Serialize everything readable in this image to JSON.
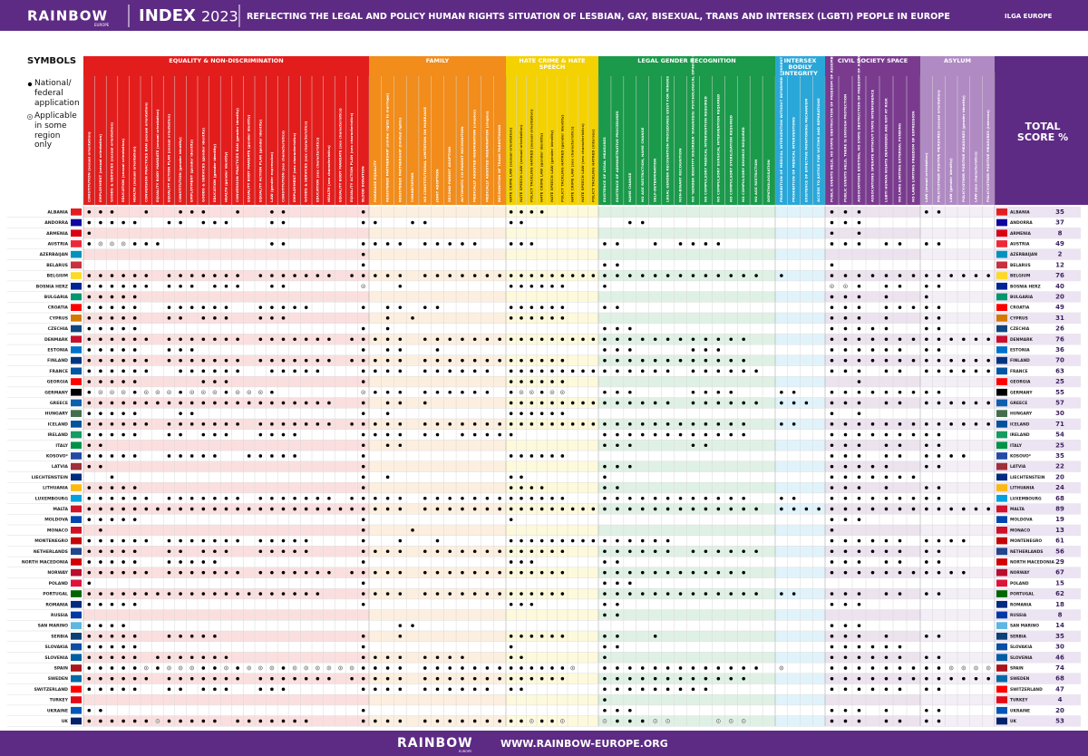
{
  "header": {
    "logo": "RAINBOW",
    "logo_sub": "EUROPE",
    "index": "INDEX",
    "year": "2023",
    "title": "REFLECTING THE LEGAL AND POLICY HUMAN RIGHTS SITUATION OF LESBIAN, GAY, BISEXUAL, TRANS AND INTERSEX (LGBTI) PEOPLE IN EUROPE",
    "org": "ILGA EUROPE"
  },
  "legend": {
    "title": "SYMBOLS",
    "national": "National/ federal application",
    "regional": "Applicable in some region only"
  },
  "footer": {
    "logo": "RAINBOW",
    "logo_sub": "EUROPE",
    "url": "WWW.RAINBOW-EUROPE.ORG"
  },
  "table": {
    "total_label": "TOTAL SCORE %",
    "sections": [
      {
        "title": "EQUALITY & NON-DISCRIMINATION",
        "color": "#e31d1c",
        "columns": [
          "CONSTITUTION (sexual orientation)",
          "EMPLOYMENT (sexual orientation)",
          "GOODS & SERVICES (sexual orientation)",
          "EDUCATION (sexual orientation)",
          "HEALTH (sexual orientation)",
          "CONVERSION PRACTICES BAN (sexual orientation)",
          "EQUALITY BODY MANDATE (sexual orientation)",
          "EQUALITY ACTION PLAN (sexual orientation)",
          "CONSTITUTION (gender identity)",
          "EMPLOYMENT (gender identity)",
          "GOODS & SERVICES (gender identity)",
          "EDUCATION (gender identity)",
          "HEALTH (gender identity)",
          "CONVERSION PRACTICES BAN (gender identity)",
          "EQUALITY BODY MANDATE (gender identity)",
          "EQUALITY ACTION PLAN (gender identity)",
          "LAW (gender expression)",
          "CONSTITUTION (sex characteristics)",
          "EMPLOYMENT (sex characteristics)",
          "GOODS & SERVICES (sex characteristics)",
          "EDUCATION (sex characteristics)",
          "HEALTH (sex characteristics)",
          "EQUALITY BODY MANDATE (sex characteristics)",
          "EQUALITY ACTION PLAN (sex characteristics)",
          "BLOOD DONATION"
        ]
      },
      {
        "title": "FAMILY",
        "color": "#f28c1a",
        "columns": [
          "MARRIAGE EQUALITY",
          "REGISTERED PARTNERSHIP (similar rights to marriage)",
          "REGISTERED PARTNERSHIP (limited rights)",
          "COHABITATION",
          "NO CONSTITUTIONAL LIMITATION ON MARRIAGE",
          "JOINT ADOPTION",
          "SECOND-PARENT ADOPTION",
          "AUTOMATIC CO-PARENT RECOGNITION",
          "MEDICALLY ASSISTED INSEMINATION (couples)",
          "MEDICALLY ASSISTED INSEMINATION (singles)",
          "RECOGNITION OF TRANS PARENTHOOD"
        ]
      },
      {
        "title": "HATE CRIME & HATE SPEECH",
        "color": "#f4d100",
        "columns": [
          "HATE CRIME LAW (sexual orientation)",
          "HATE SPEECH LAW (sexual orientation)",
          "POLICY TACKLING HATRED (sexual orientation)",
          "HATE CRIME LAW (gender identity)",
          "HATE SPEECH LAW (gender identity)",
          "POLICY TACKLING HATRED (gender identity)",
          "HATE CRIME LAW (sex characteristics)",
          "HATE SPEECH LAW (sex characteristics)",
          "POLICY TACKLING HATRED (intersex)"
        ]
      },
      {
        "title": "LEGAL GENDER RECOGNITION",
        "color": "#1a9a4a",
        "columns": [
          "EXISTENCE OF LEGAL MEASURES",
          "EXISTENCE OF ADMINISTRATIVE PROCEDURES",
          "NAME CHANGE",
          "NO AGE RESTRICTION, NAME CHANGE",
          "SELF-DETERMINATION",
          "LEGAL GENDER RECOGNITION PROCEDURES EXIST FOR MINORS",
          "NON-BINARY RECOGNITION",
          "NO 'GENDER IDENTITY DISORDER' DIAGNOSIS/ PSYCHOLOGICAL OPINION REQUIRED",
          "NO COMPULSORY MEDICAL INTERVENTION REQUIRED",
          "NO COMPULSORY SURGICAL INTERVENTION REQUIRED",
          "NO COMPULSORY STERILISATION REQUIRED",
          "NO COMPULSORY DIVORCE REQUIRED",
          "NO AGE RESTRICTION",
          "DEPATHOLOGISATION"
        ]
      },
      {
        "title": "INTERSEX BODILY INTEGRITY",
        "color": "#2aa7d9",
        "columns": [
          "PROHIBITION OF MEDICAL INTERVENTION WITHOUT INFORMED CONSENT",
          "PROHIBITION OF MEDICAL INTERVENTIONS",
          "EXISTENCE OF EFFECTIVE MONITORING MECHANISM",
          "ACCESS TO JUSTICE FOR VICTIMS AND REPARATIONS"
        ]
      },
      {
        "title": "CIVIL SOCIETY SPACE",
        "color": "#7a3b8f",
        "columns": [
          "PUBLIC EVENTS HELD, NO STATE OBSTRUCTION OF FREEDOM OF ASSEMBLY",
          "PUBLIC EVENTS HELD, THERE IS ENOUGH PROTECTION",
          "ASSOCIATIONS EXISTING, NO STATE OBSTRUCTION OF FREEDOM OF ASSOCIATION",
          "ASSOCIATIONS OPERATE WITHOUT STATE INTERFERENCE",
          "LGBTI HUMAN RIGHTS DEFENDERS ARE NOT AT RISK",
          "NO LAWS LIMITING EXTERNAL FUNDING",
          "NO LAWS LIMITING FREEDOM OF EXPRESSION"
        ]
      },
      {
        "title": "ASYLUM",
        "color": "#b08ac3",
        "columns": [
          "LAW (sexual orientation)",
          "POLICY/OTHER POSITIVE MEASURES (sexual orientation)",
          "LAW (gender identity)",
          "POLICY/OTHER POSITIVE MEASURES (gender identity)",
          "LAW (sex characteristics)",
          "POLICY/OTHER POSITIVE MEASURES (intersex)"
        ]
      }
    ],
    "countries": [
      {
        "name": "ALBANIA",
        "score": 35,
        "cells": [
          "1110010011100100110000001",
          "00000000000",
          "111100000",
          "00000000000000",
          "0000",
          "1110000",
          "110000"
        ]
      },
      {
        "name": "ANDORRA",
        "score": 37,
        "cells": [
          "1111100110111000110000001",
          "10011000000",
          "110000000",
          "00110000000000",
          "0000",
          "1110000",
          "000000"
        ]
      },
      {
        "name": "ARMENIA",
        "score": 8,
        "cells": [
          "1000000000000000000000000",
          "00000000000",
          "000000000",
          "00000000000000",
          "0000",
          "1010000",
          "000000"
        ]
      },
      {
        "name": "AUSTRIA",
        "score": 49,
        "cells": [
          "1222111000000000110000001",
          "11101111100",
          "111000000",
          "11001011110000",
          "0000",
          "1110110",
          "110000"
        ]
      },
      {
        "name": "AZERBAIJAN",
        "score": 2,
        "cells": [
          "0000000000000000000000001",
          "00000000000",
          "000000000",
          "00000000000000",
          "0000",
          "0000000",
          "000000"
        ]
      },
      {
        "name": "BELARUS",
        "score": 12,
        "cells": [
          "0000000000000000000000001",
          "00000000000",
          "000000000",
          "11000000000000",
          "0000",
          "1000000",
          "000000"
        ]
      },
      {
        "name": "BELGIUM",
        "score": 76,
        "cells": [
          "1111110111111101111111011",
          "11101111111",
          "111111111",
          "11111111111110",
          "1000",
          "1111111",
          "111111"
        ]
      },
      {
        "name": "BOSNIA HERZ",
        "score": 40,
        "cells": [
          "1111110111011100110000002",
          "00100000000",
          "111111000",
          "10000000000000",
          "0000",
          "2210110",
          "110000"
        ]
      },
      {
        "name": "BULGARIA",
        "score": 20,
        "cells": [
          "1111100000000000000000000",
          "00000000000",
          "000000000",
          "00000000000000",
          "0000",
          "1110100",
          "100000"
        ]
      },
      {
        "name": "CROATIA",
        "score": 49,
        "cells": [
          "1111100111111001111100001",
          "01101100000",
          "111111000",
          "11000000000000",
          "0000",
          "1110111",
          "110000"
        ]
      },
      {
        "name": "CYPRUS",
        "score": 31,
        "cells": [
          "1111100110111001110000000",
          "01010000000",
          "111111000",
          "00000000000000",
          "0000",
          "1110100",
          "110000"
        ]
      },
      {
        "name": "CZECHIA",
        "score": 26,
        "cells": [
          "1111100000000000000000001",
          "01000000000",
          "000000000",
          "11100000000000",
          "0000",
          "1111100",
          "110000"
        ]
      },
      {
        "name": "DENMARK",
        "score": 76,
        "cells": [
          "1111110111111101111111011",
          "11101111111",
          "111111111",
          "11111111111100",
          "0000",
          "1111111",
          "111111"
        ]
      },
      {
        "name": "ESTONIA",
        "score": 36,
        "cells": [
          "1111100111000000000000001",
          "01100100000",
          "000000000",
          "11100001110000",
          "0000",
          "1111110",
          "110000"
        ]
      },
      {
        "name": "FINLAND",
        "score": 70,
        "cells": [
          "1111110111111101111111011",
          "11101111111",
          "111111000",
          "11111111111100",
          "0000",
          "1111111",
          "111111"
        ]
      },
      {
        "name": "FRANCE",
        "score": 63,
        "cells": [
          "1111110011111100111110001",
          "11101111110",
          "111111111",
          "11111101111110",
          "0000",
          "1110110",
          "111111"
        ]
      },
      {
        "name": "GEORGIA",
        "score": 25,
        "cells": [
          "1111100000111000000000001",
          "00000000000",
          "111111000",
          "00000000000000",
          "0000",
          "0010000",
          "000000"
        ]
      },
      {
        "name": "GERMANY",
        "score": 55,
        "cells": [
          "1222122212221222100000002",
          "11101111110",
          "122122000",
          "11100001111000",
          "1100",
          "1111111",
          "110000"
        ]
      },
      {
        "name": "GREECE",
        "score": 57,
        "cells": [
          "1111111111111111111111001",
          "01101000000",
          "111111111",
          "11111101111110",
          "1110",
          "1110110",
          "111111"
        ]
      },
      {
        "name": "HUNGARY",
        "score": 30,
        "cells": [
          "1111100011000000000000001",
          "01000000000",
          "111111000",
          "00000000000000",
          "0000",
          "1010000",
          "000000"
        ]
      },
      {
        "name": "ICELAND",
        "score": 71,
        "cells": [
          "1111110111111101111111011",
          "11101111111",
          "111111111",
          "11111111111100",
          "1100",
          "1111111",
          "111111"
        ]
      },
      {
        "name": "IRELAND",
        "score": 54,
        "cells": [
          "1111100110111001111000001",
          "11101101111",
          "100000000",
          "11111111111100",
          "0000",
          "1111111",
          "110000"
        ]
      },
      {
        "name": "ITALY",
        "score": 25,
        "cells": [
          "1100000000000000000000001",
          "01100000000",
          "000000000",
          "11100001100000",
          "0000",
          "1110110",
          "110000"
        ]
      },
      {
        "name": "KOSOVO*",
        "score": 35,
        "cells": [
          "1111100111110011111000001",
          "00000000000",
          "111111000",
          "00000000000000",
          "0000",
          "1110110",
          "111100"
        ]
      },
      {
        "name": "LATVIA",
        "score": 22,
        "cells": [
          "1100000000000000000000001",
          "00000000000",
          "000000000",
          "11100000000000",
          "0000",
          "1111100",
          "110000"
        ]
      },
      {
        "name": "LIECHTENSTEIN",
        "score": 20,
        "cells": [
          "0010000000000000000000001",
          "01000000000",
          "110000000",
          "10000000000000",
          "0000",
          "1111111",
          "000000"
        ]
      },
      {
        "name": "LITHUANIA",
        "score": 24,
        "cells": [
          "1111100000000000000000001",
          "00000000000",
          "111100000",
          "11000000000000",
          "0000",
          "1110100",
          "110000"
        ]
      },
      {
        "name": "LUXEMBOURG",
        "score": 68,
        "cells": [
          "1111110111111101111111011",
          "11101111111",
          "111111000",
          "11111111111100",
          "1100",
          "1111111",
          "110000"
        ]
      },
      {
        "name": "MALTA",
        "score": 89,
        "cells": [
          "1111111111111111111111111",
          "11101111111",
          "111111111",
          "11111111111110",
          "1111",
          "1111111",
          "111111"
        ]
      },
      {
        "name": "MOLDOVA",
        "score": 19,
        "cells": [
          "1111100000000000000000001",
          "00000000000",
          "100000000",
          "00000000000000",
          "0000",
          "1110000",
          "000000"
        ]
      },
      {
        "name": "MONACO",
        "score": 13,
        "cells": [
          "0100000000000000000000001",
          "00010000000",
          "000000000",
          "00000000000000",
          "0000",
          "1000000",
          "000000"
        ]
      },
      {
        "name": "MONTENEGRO",
        "score": 61,
        "cells": [
          "1111110111111101111100001",
          "00100100000",
          "111111111",
          "11111100000000",
          "0000",
          "1111110",
          "111100"
        ]
      },
      {
        "name": "NETHERLANDS",
        "score": 56,
        "cells": [
          "1111100110111001111100001",
          "11101111111",
          "111111000",
          "11111101111110",
          "0000",
          "1111110",
          "110000"
        ]
      },
      {
        "name": "NORTH MACEDONIA",
        "score": 29,
        "cells": [
          "1111100111110000000000001",
          "00000000000",
          "111000000",
          "11000000000000",
          "0000",
          "1110110",
          "110000"
        ]
      },
      {
        "name": "NORWAY",
        "score": 67,
        "cells": [
          "1111110111111101111111011",
          "11101111111",
          "111111000",
          "11111111111100",
          "0000",
          "1111111",
          "111100"
        ]
      },
      {
        "name": "POLAND",
        "score": 15,
        "cells": [
          "1000000000000000000000001",
          "00000000000",
          "000000000",
          "11100000000000",
          "0000",
          "0000000",
          "000000"
        ]
      },
      {
        "name": "PORTUGAL",
        "score": 62,
        "cells": [
          "1111111111111111111110001",
          "11101111111",
          "111111000",
          "11111111111110",
          "1100",
          "1110110",
          "110000"
        ]
      },
      {
        "name": "ROMANIA",
        "score": 18,
        "cells": [
          "1111100000000000000000001",
          "00000000000",
          "111000000",
          "11000000000000",
          "0000",
          "1110000",
          "000000"
        ]
      },
      {
        "name": "RUSSIA",
        "score": 8,
        "cells": [
          "0000000000000000000000000",
          "00000000000",
          "000000000",
          "11000000000000",
          "0000",
          "0000000",
          "000000"
        ]
      },
      {
        "name": "SAN MARINO",
        "score": 14,
        "cells": [
          "1111000000000000000000000",
          "00110000000",
          "000000000",
          "00000000000000",
          "0000",
          "1110000",
          "000000"
        ]
      },
      {
        "name": "SERBIA",
        "score": 35,
        "cells": [
          "1111100111110000000000001",
          "00100000000",
          "111111000",
          "11001000000000",
          "0000",
          "1110100",
          "110000"
        ]
      },
      {
        "name": "SLOVAKIA",
        "score": 30,
        "cells": [
          "1111100000000000000000001",
          "00000000000",
          "100000000",
          "11000000000000",
          "0000",
          "1111110",
          "000000"
        ]
      },
      {
        "name": "SLOVENIA",
        "score": 46,
        "cells": [
          "1111101111111000000000001",
          "11101111000",
          "110000000",
          "10000000000000",
          "0000",
          "1111110",
          "110000"
        ]
      },
      {
        "name": "SPAIN",
        "score": 74,
        "cells": [
          "1111121222112122212222221",
          "11101111111",
          "111111200",
          "11111111111110",
          "2000",
          "1111111",
          "112222"
        ]
      },
      {
        "name": "SWEDEN",
        "score": 68,
        "cells": [
          "1111110111111101111111011",
          "11101111111",
          "111111000",
          "11111111111100",
          "0000",
          "1111111",
          "111111"
        ]
      },
      {
        "name": "SWITZERLAND",
        "score": 47,
        "cells": [
          "1111100110111001110000001",
          "11101111110",
          "110000000",
          "11111111100000",
          "0000",
          "1111110",
          "110000"
        ]
      },
      {
        "name": "TURKEY",
        "score": 4,
        "cells": [
          "0000000000000000000000000",
          "00000000000",
          "000000000",
          "10000000000000",
          "0000",
          "0000000",
          "000000"
        ]
      },
      {
        "name": "UKRAINE",
        "score": 20,
        "cells": [
          "1100000000000000000000001",
          "00000000000",
          "000000000",
          "11100000000000",
          "0000",
          "1110100",
          "110000"
        ]
      },
      {
        "name": "UK",
        "score": 53,
        "cells": [
          "1111112111110111111100001",
          "11101111111",
          "112112000",
          "21112200022200",
          "0000",
          "1110110",
          "110000"
        ]
      }
    ]
  }
}
